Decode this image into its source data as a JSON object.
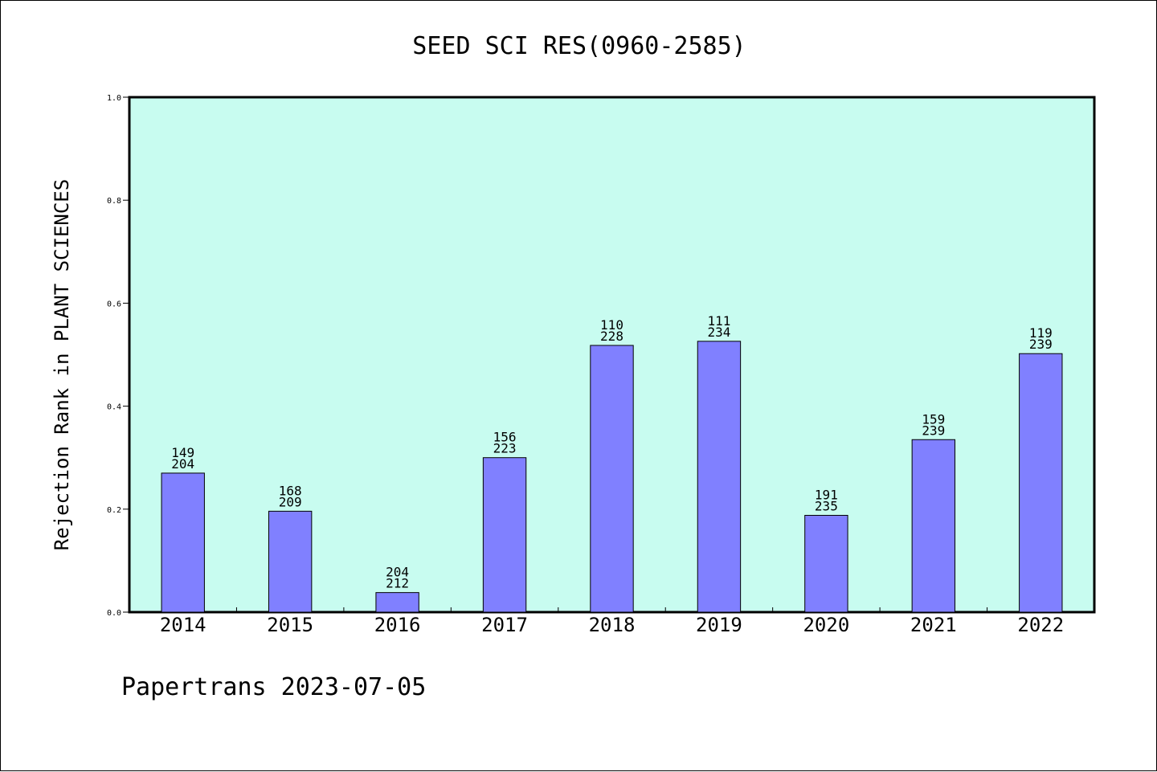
{
  "chart_data": {
    "type": "bar",
    "title": "SEED SCI RES(0960-2585)",
    "ylabel": "Rejection Rank in PLANT SCIENCES",
    "xlabel": "",
    "ylim": [
      0,
      1.0
    ],
    "yticks": [
      "0.0",
      "0.2",
      "0.4",
      "0.6",
      "0.8",
      "1.0"
    ],
    "categories": [
      "2014",
      "2015",
      "2016",
      "2017",
      "2018",
      "2019",
      "2020",
      "2021",
      "2022"
    ],
    "values": [
      0.27,
      0.196,
      0.038,
      0.3,
      0.518,
      0.526,
      0.188,
      0.335,
      0.502
    ],
    "labels_top": [
      "149",
      "168",
      "204",
      "156",
      "110",
      "111",
      "191",
      "159",
      "119"
    ],
    "labels_bottom": [
      "204",
      "209",
      "212",
      "223",
      "228",
      "234",
      "235",
      "239",
      "239"
    ],
    "grid": false,
    "legend": "none",
    "colors": {
      "plot_background": "#c8fcf0",
      "bar_fill": "#8080ff",
      "bar_stroke": "#000000"
    }
  },
  "footer": "Papertrans 2023-07-05"
}
